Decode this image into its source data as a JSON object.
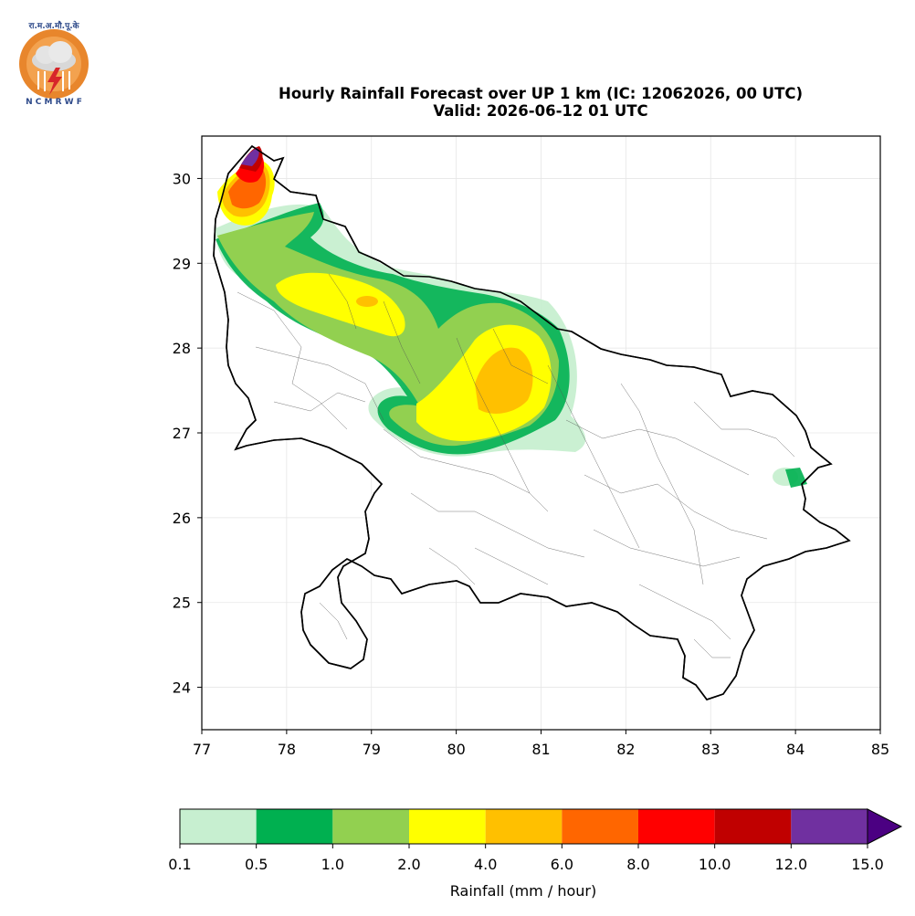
{
  "logo": {
    "top_text": "रा.म.अ.मौ.पू.के",
    "bottom_text": "N C M R W F",
    "colors": {
      "ring": "#E8862C",
      "cloud": "#D8D8D8",
      "bolt": "#D7262A",
      "text": "#2E4A8A"
    }
  },
  "header": {
    "title": "Hourly Rainfall Forecast over UP 1 km (IC: 12062026, 00 UTC)",
    "subtitle": "Valid: 2026-06-12 01 UTC"
  },
  "map_axes": {
    "x_ticks": [
      "77",
      "78",
      "79",
      "80",
      "81",
      "82",
      "83",
      "84",
      "85"
    ],
    "y_ticks": [
      "30",
      "29",
      "28",
      "27",
      "26",
      "25",
      "24"
    ],
    "xlim": [
      77,
      85
    ],
    "ylim": [
      23.5,
      30.5
    ],
    "grid": true
  },
  "colorbar": {
    "label": "Rainfall (mm / hour)",
    "bounds": [
      "0.1",
      "0.5",
      "1.0",
      "2.0",
      "4.0",
      "6.0",
      "8.0",
      "10.0",
      "12.0",
      "15.0"
    ],
    "colors": [
      "#C7EFD0",
      "#00B050",
      "#92D050",
      "#FFFF00",
      "#FFC000",
      "#FF6600",
      "#FF0000",
      "#C00000",
      "#7030A0"
    ],
    "extend_color": "#4B0082"
  }
}
